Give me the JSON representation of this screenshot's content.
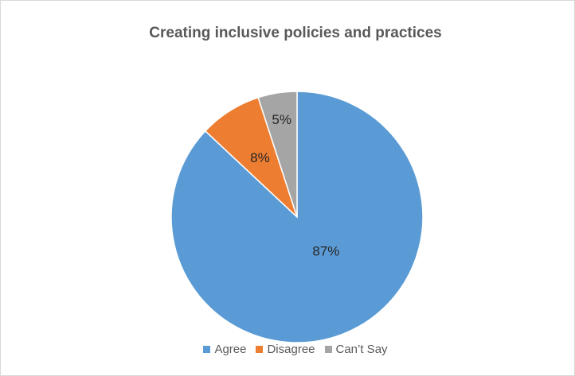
{
  "chart_data": {
    "type": "pie",
    "title": "Creating inclusive policies and practices",
    "categories": [
      "Agree",
      "Disagree",
      "Can’t Say"
    ],
    "values": [
      87,
      8,
      5
    ],
    "labels": [
      "87%",
      "8%",
      "5%"
    ],
    "colors": [
      "#5b9bd5",
      "#ed7d31",
      "#a5a5a5"
    ],
    "legend": "bottom",
    "start_angle_deg": 0,
    "direction": "clockwise"
  }
}
